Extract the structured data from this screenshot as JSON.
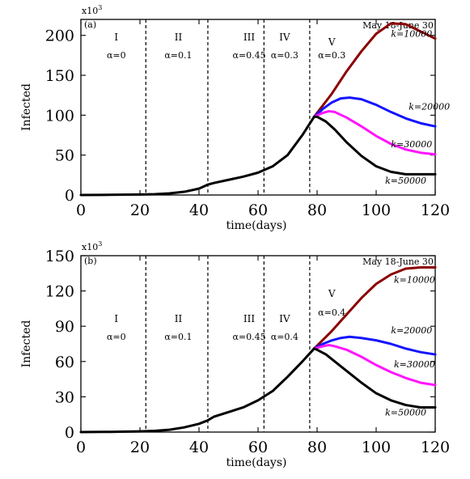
{
  "chart_data": [
    {
      "type": "line",
      "panel_label": "(a)",
      "multiplier_base": "x10",
      "multiplier_exp": "3",
      "xlabel": "time(days)",
      "ylabel": "Infected",
      "xlim": [
        0,
        120
      ],
      "ylim": [
        0,
        220
      ],
      "xticks": [
        0,
        20,
        40,
        60,
        80,
        100,
        120
      ],
      "yticks": [
        0,
        50,
        100,
        150,
        200
      ],
      "date_note": "May 18-June 30",
      "phase_lines": [
        22,
        43,
        62,
        77.5
      ],
      "phases": [
        {
          "roman": "I",
          "alpha": "α=0",
          "x": 12
        },
        {
          "roman": "II",
          "alpha": "α=0.1",
          "x": 33
        },
        {
          "roman": "III",
          "alpha": "α=0.45",
          "x": 57
        },
        {
          "roman": "IV",
          "alpha": "α=0.3",
          "x": 69
        },
        {
          "roman": "V",
          "alpha": "α=0.3",
          "x": 85
        }
      ],
      "base_series": {
        "color": "#000000",
        "x": [
          0,
          10,
          20,
          25,
          30,
          35,
          40,
          43,
          45,
          50,
          55,
          60,
          65,
          70,
          75,
          79
        ],
        "y": [
          0,
          0.2,
          0.6,
          1,
          2,
          4,
          8,
          13,
          15,
          19,
          23,
          28,
          36,
          50,
          75,
          98
        ]
      },
      "series": [
        {
          "name": "k=10000",
          "color": "#8b0000",
          "x": [
            79,
            85,
            90,
            95,
            100,
            105,
            110,
            115,
            120
          ],
          "y": [
            98,
            127,
            155,
            180,
            202,
            215,
            214,
            205,
            196
          ]
        },
        {
          "name": "k=20000",
          "color": "#1414ff",
          "x": [
            79,
            82,
            85,
            88,
            91,
            95,
            100,
            105,
            110,
            115,
            120
          ],
          "y": [
            98,
            108,
            116,
            121,
            122,
            120,
            113,
            104,
            96,
            90,
            86
          ]
        },
        {
          "name": "k=30000",
          "color": "#ff14ff",
          "x": [
            79,
            82,
            84,
            86,
            90,
            95,
            100,
            105,
            110,
            115,
            120
          ],
          "y": [
            98,
            103,
            105,
            104,
            97,
            86,
            74,
            64,
            57,
            53,
            51
          ]
        },
        {
          "name": "k=50000",
          "color": "#000000",
          "x": [
            79,
            80,
            83,
            86,
            90,
            95,
            100,
            105,
            110,
            115,
            120
          ],
          "y": [
            98,
            98,
            92,
            82,
            66,
            49,
            36,
            29,
            26,
            26,
            26
          ]
        }
      ],
      "series_label_x": [
        112,
        118,
        112,
        110
      ],
      "series_label_y": [
        198,
        107,
        60,
        14
      ]
    },
    {
      "type": "line",
      "panel_label": "(b)",
      "multiplier_base": "x10",
      "multiplier_exp": "3",
      "xlabel": "time(days)",
      "ylabel": "Infected",
      "xlim": [
        0,
        120
      ],
      "ylim": [
        0,
        150
      ],
      "xticks": [
        0,
        20,
        40,
        60,
        80,
        100,
        120
      ],
      "yticks": [
        0,
        30,
        60,
        90,
        120,
        150
      ],
      "date_note": "May 18-June 30",
      "phase_lines": [
        22,
        43,
        62,
        77.5
      ],
      "phases": [
        {
          "roman": "I",
          "alpha": "α=0",
          "x": 12
        },
        {
          "roman": "II",
          "alpha": "α=0.1",
          "x": 33
        },
        {
          "roman": "III",
          "alpha": "α=0.45",
          "x": 57
        },
        {
          "roman": "IV",
          "alpha": "α=0.4",
          "x": 69
        },
        {
          "roman": "V",
          "alpha": "α=0.4",
          "x": 85
        }
      ],
      "base_series": {
        "color": "#000000",
        "x": [
          0,
          10,
          20,
          25,
          30,
          35,
          40,
          43,
          45,
          50,
          55,
          60,
          65,
          70,
          75,
          79
        ],
        "y": [
          0,
          0.2,
          0.6,
          1,
          2,
          4,
          7,
          10,
          13,
          17,
          21,
          27,
          35,
          47,
          60,
          71
        ]
      },
      "series": [
        {
          "name": "k=10000",
          "color": "#8b0000",
          "x": [
            79,
            85,
            90,
            95,
            100,
            105,
            110,
            115,
            120
          ],
          "y": [
            71,
            86,
            100,
            114,
            126,
            134,
            139,
            140,
            140
          ]
        },
        {
          "name": "k=20000",
          "color": "#1414ff",
          "x": [
            79,
            82,
            85,
            88,
            91,
            95,
            100,
            105,
            110,
            115,
            120
          ],
          "y": [
            71,
            75,
            78,
            80,
            81,
            80,
            78,
            75,
            71,
            68,
            66
          ]
        },
        {
          "name": "k=30000",
          "color": "#ff14ff",
          "x": [
            79,
            82,
            84,
            86,
            90,
            95,
            100,
            105,
            110,
            115,
            120
          ],
          "y": [
            71,
            73,
            74,
            73,
            70,
            64,
            57,
            51,
            46,
            42,
            40
          ]
        },
        {
          "name": "k=50000",
          "color": "#000000",
          "x": [
            79,
            80,
            83,
            86,
            90,
            95,
            100,
            105,
            110,
            115,
            120
          ],
          "y": [
            71,
            70,
            66,
            60,
            52,
            42,
            33,
            27,
            23,
            21,
            21
          ]
        }
      ],
      "series_label_x": [
        113,
        112,
        113,
        110
      ],
      "series_label_y": [
        127,
        84,
        55,
        14
      ]
    }
  ]
}
